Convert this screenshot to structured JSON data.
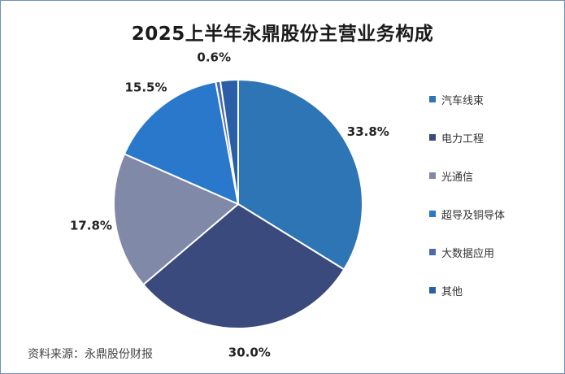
{
  "chart_data": {
    "type": "pie",
    "title": "2025上半年永鼎股份主营业务构成",
    "categories": [
      "汽车线束",
      "电力工程",
      "光通信",
      "超导及铜导体",
      "大数据应用",
      "其他"
    ],
    "values": [
      33.8,
      30.0,
      17.8,
      15.5,
      0.6,
      2.3
    ],
    "data_labels": [
      "33.8%",
      "30.0%",
      "17.8%",
      "15.5%",
      "0.6%",
      ""
    ],
    "colors": [
      "#2e75b6",
      "#3b4a7c",
      "#8089a8",
      "#2a78cc",
      "#4a6aa8",
      "#2a5fa8"
    ],
    "legend_position": "right",
    "start_angle_deg": 0,
    "direction": "clockwise"
  },
  "source_note": "资料来源：永鼎股份财报"
}
